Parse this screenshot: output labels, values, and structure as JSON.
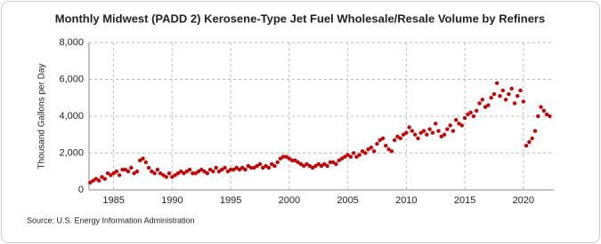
{
  "chart_data": {
    "type": "scatter",
    "title": "Monthly Midwest (PADD 2) Kerosene-Type Jet Fuel Wholesale/Resale Volume by Refiners",
    "y_label": "Thousand Gallons per Day",
    "source": "Source: U.S. Energy Information Administration",
    "x": [
      1983,
      1983.25,
      1983.5,
      1983.75,
      1984,
      1984.25,
      1984.5,
      1984.75,
      1985,
      1985.25,
      1985.5,
      1985.75,
      1986,
      1986.25,
      1986.5,
      1986.75,
      1987,
      1987.25,
      1987.5,
      1987.75,
      1988,
      1988.25,
      1988.5,
      1988.75,
      1989,
      1989.25,
      1989.5,
      1989.75,
      1990,
      1990.25,
      1990.5,
      1990.75,
      1991,
      1991.25,
      1991.5,
      1991.75,
      1992,
      1992.25,
      1992.5,
      1992.75,
      1993,
      1993.25,
      1993.5,
      1993.75,
      1994,
      1994.25,
      1994.5,
      1994.75,
      1995,
      1995.25,
      1995.5,
      1995.75,
      1996,
      1996.25,
      1996.5,
      1996.75,
      1997,
      1997.25,
      1997.5,
      1997.75,
      1998,
      1998.25,
      1998.5,
      1998.75,
      1999,
      1999.25,
      1999.5,
      1999.75,
      2000,
      2000.25,
      2000.5,
      2000.75,
      2001,
      2001.25,
      2001.5,
      2001.75,
      2002,
      2002.25,
      2002.5,
      2002.75,
      2003,
      2003.25,
      2003.5,
      2003.75,
      2004,
      2004.25,
      2004.5,
      2004.75,
      2005,
      2005.25,
      2005.5,
      2005.75,
      2006,
      2006.25,
      2006.5,
      2006.75,
      2007,
      2007.25,
      2007.5,
      2007.75,
      2008,
      2008.25,
      2008.5,
      2008.75,
      2009,
      2009.25,
      2009.5,
      2009.75,
      2010,
      2010.25,
      2010.5,
      2010.75,
      2011,
      2011.25,
      2011.5,
      2011.75,
      2012,
      2012.25,
      2012.5,
      2012.75,
      2013,
      2013.25,
      2013.5,
      2013.75,
      2014,
      2014.25,
      2014.5,
      2014.75,
      2015,
      2015.25,
      2015.5,
      2015.75,
      2016,
      2016.25,
      2016.5,
      2016.75,
      2017,
      2017.25,
      2017.5,
      2017.75,
      2018,
      2018.25,
      2018.5,
      2018.75,
      2019,
      2019.25,
      2019.5,
      2019.75,
      2020,
      2020.25,
      2020.5,
      2020.75,
      2021,
      2021.25,
      2021.5,
      2021.75,
      2022,
      2022.25
    ],
    "series": [
      {
        "color": "#cc0000",
        "values": [
          400,
          500,
          600,
          500,
          700,
          600,
          900,
          800,
          900,
          1000,
          800,
          1100,
          1100,
          1000,
          1200,
          900,
          1000,
          1600,
          1700,
          1500,
          1200,
          1000,
          900,
          1100,
          900,
          800,
          700,
          900,
          700,
          800,
          900,
          1000,
          900,
          1000,
          1100,
          900,
          900,
          1000,
          1100,
          1000,
          900,
          1100,
          1000,
          1200,
          1000,
          1100,
          1200,
          1000,
          1100,
          1100,
          1200,
          1100,
          1200,
          1100,
          1300,
          1200,
          1200,
          1300,
          1400,
          1200,
          1300,
          1200,
          1400,
          1300,
          1500,
          1700,
          1800,
          1800,
          1700,
          1600,
          1600,
          1500,
          1400,
          1300,
          1400,
          1300,
          1200,
          1300,
          1400,
          1300,
          1400,
          1300,
          1500,
          1500,
          1400,
          1600,
          1700,
          1800,
          1900,
          1800,
          2000,
          1800,
          1900,
          2100,
          2000,
          2200,
          2300,
          2100,
          2500,
          2700,
          2800,
          2400,
          2200,
          2100,
          2700,
          2900,
          2800,
          3000,
          3100,
          3400,
          3200,
          3000,
          2800,
          3100,
          3200,
          3000,
          3300,
          3100,
          3600,
          3200,
          2900,
          3000,
          3300,
          3500,
          3200,
          3800,
          3600,
          3500,
          3900,
          4100,
          4200,
          4000,
          4300,
          4700,
          4900,
          4500,
          4600,
          5000,
          5200,
          5800,
          5100,
          5400,
          4900,
          5200,
          5500,
          4700,
          5100,
          5400,
          4800,
          2400,
          2600,
          2800,
          3200,
          4000,
          4500,
          4300,
          4100,
          4000
        ]
      }
    ],
    "xlim": [
      1982.9,
      2022.6
    ],
    "xticks": [
      1985,
      1990,
      1995,
      2000,
      2005,
      2010,
      2015,
      2020
    ],
    "ylim": [
      0,
      8000
    ],
    "yticks": [
      0,
      {
        "value": 2000,
        "label": "2,000"
      },
      {
        "value": 4000,
        "label": "4,000"
      },
      {
        "value": 6000,
        "label": "6,000"
      },
      {
        "value": 8000,
        "label": "8,000"
      }
    ],
    "grid": true
  }
}
